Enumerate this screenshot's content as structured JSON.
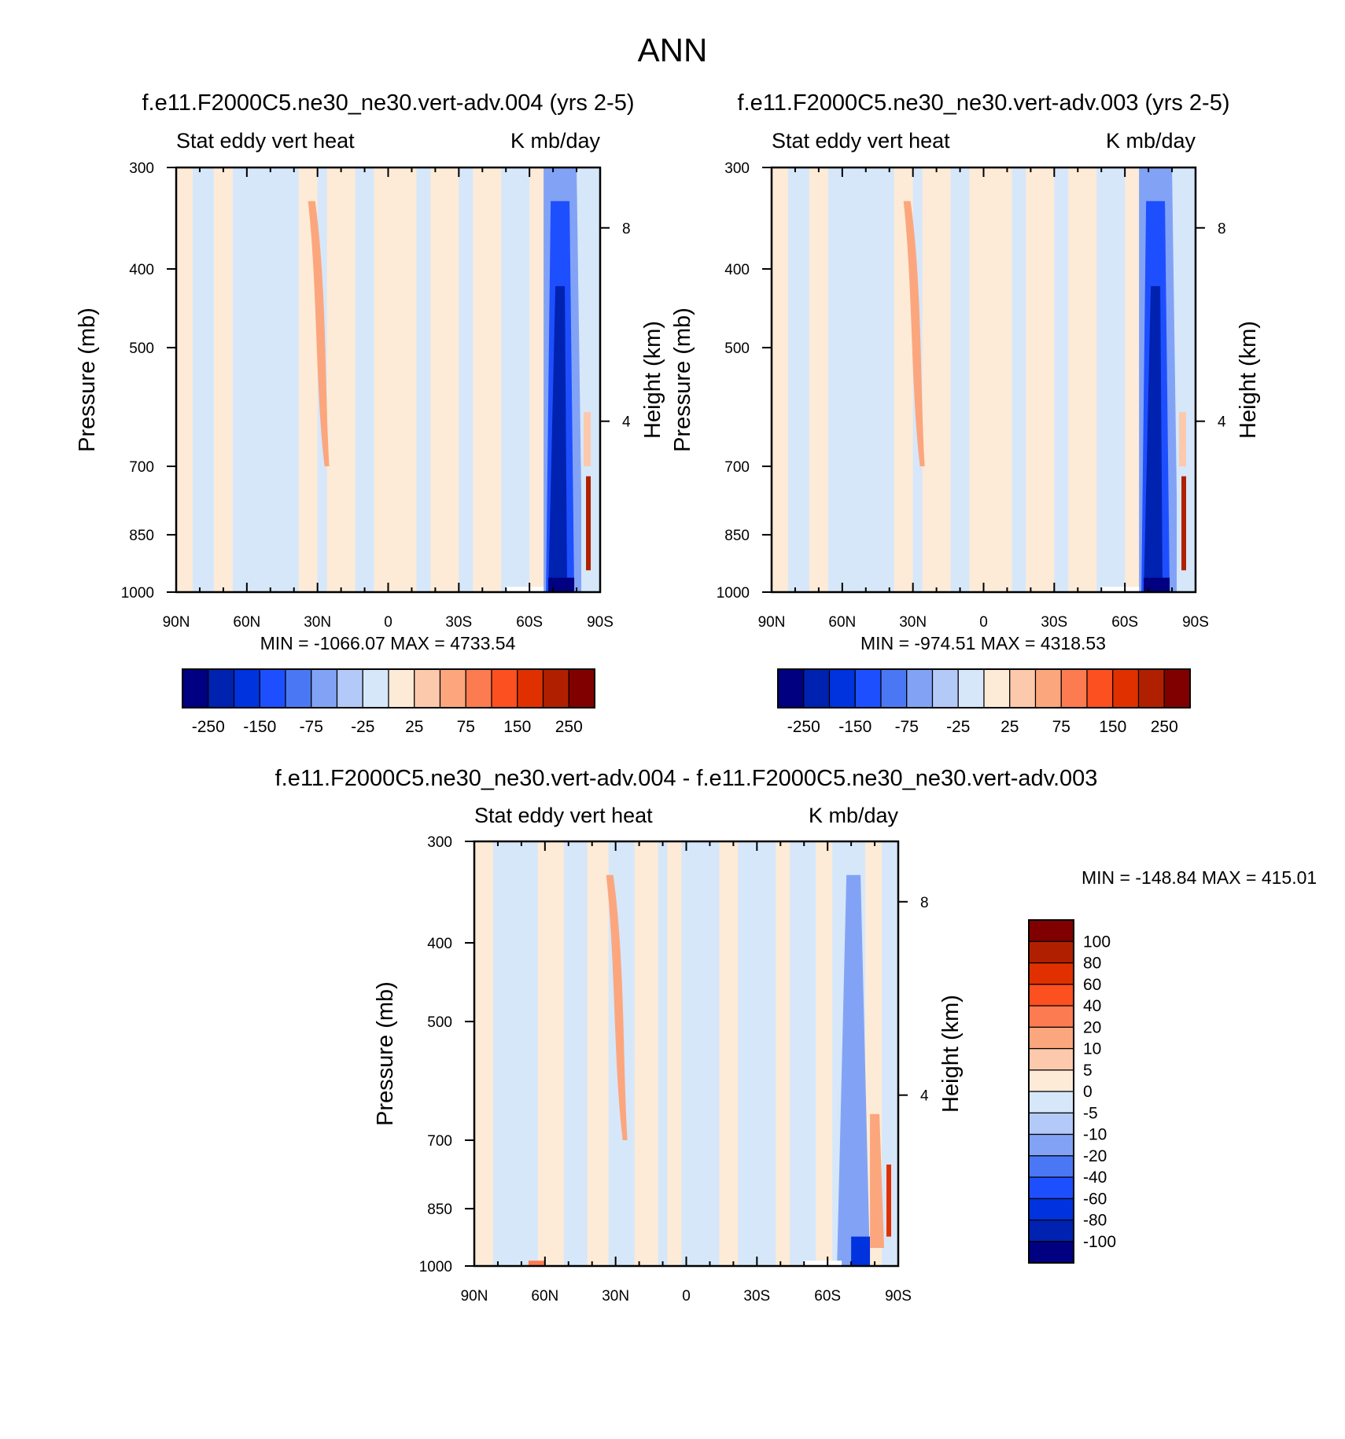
{
  "figure": {
    "title": "ANN"
  },
  "colors": {
    "panel_palette": [
      "#000080",
      "#0022b0",
      "#0033dd",
      "#1e4fff",
      "#4a78f5",
      "#82a3f5",
      "#b3c9f7",
      "#d6e7fa",
      "#fdebd7",
      "#fcc9ad",
      "#fca67e",
      "#fc7b50",
      "#fc5020",
      "#e03000",
      "#b02000",
      "#800000"
    ],
    "diff_palette": [
      "#000080",
      "#0022b0",
      "#0033dd",
      "#1e4fff",
      "#4a78f5",
      "#82a3f5",
      "#b3c9f7",
      "#d6e7fa",
      "#fdebd7",
      "#fcc9ad",
      "#fca67e",
      "#fc7b50",
      "#fc5020",
      "#e03000",
      "#b02000",
      "#800000"
    ]
  },
  "chart_data": [
    {
      "type": "heatmap",
      "title": "f.e11.F2000C5.ne30_ne30.vert-adv.004 (yrs 2-5)",
      "left_subtitle": "Stat eddy vert heat",
      "right_subtitle": "K mb/day",
      "ylabel": "Pressure (mb)",
      "y2label": "Height (km)",
      "x_ticks": [
        "90N",
        "60N",
        "30N",
        "0",
        "30S",
        "60S",
        "90S"
      ],
      "y_ticks": [
        "300",
        "400",
        "500",
        "700",
        "850",
        "1000"
      ],
      "y2_ticks": [
        "8",
        "4"
      ],
      "x_range": [
        90,
        -90
      ],
      "y_range": [
        1000,
        300
      ],
      "y_scale": "log",
      "stats": "MIN = -1066.07  MAX = 4733.54",
      "colorbar": {
        "orientation": "horizontal",
        "labels": [
          "-250",
          "-150",
          "-75",
          "-25",
          "25",
          "75",
          "150",
          "250"
        ]
      }
    },
    {
      "type": "heatmap",
      "title": "f.e11.F2000C5.ne30_ne30.vert-adv.003 (yrs 2-5)",
      "left_subtitle": "Stat eddy vert heat",
      "right_subtitle": "K mb/day",
      "ylabel": "Pressure (mb)",
      "y2label": "Height (km)",
      "x_ticks": [
        "90N",
        "60N",
        "30N",
        "0",
        "30S",
        "60S",
        "90S"
      ],
      "y_ticks": [
        "300",
        "400",
        "500",
        "700",
        "850",
        "1000"
      ],
      "y2_ticks": [
        "8",
        "4"
      ],
      "x_range": [
        90,
        -90
      ],
      "y_range": [
        1000,
        300
      ],
      "y_scale": "log",
      "stats": "MIN = -974.51  MAX = 4318.53",
      "colorbar": {
        "orientation": "horizontal",
        "labels": [
          "-250",
          "-150",
          "-75",
          "-25",
          "25",
          "75",
          "150",
          "250"
        ]
      }
    },
    {
      "type": "heatmap",
      "title": "f.e11.F2000C5.ne30_ne30.vert-adv.004 - f.e11.F2000C5.ne30_ne30.vert-adv.003",
      "left_subtitle": "Stat eddy vert heat",
      "right_subtitle": "K mb/day",
      "ylabel": "Pressure (mb)",
      "y2label": "Height (km)",
      "x_ticks": [
        "90N",
        "60N",
        "30N",
        "0",
        "30S",
        "60S",
        "90S"
      ],
      "y_ticks": [
        "300",
        "400",
        "500",
        "700",
        "850",
        "1000"
      ],
      "y2_ticks": [
        "8",
        "4"
      ],
      "x_range": [
        90,
        -90
      ],
      "y_range": [
        1000,
        300
      ],
      "y_scale": "log",
      "stats": "MIN = -148.84  MAX = 415.01",
      "colorbar": {
        "orientation": "vertical",
        "labels": [
          "100",
          "80",
          "60",
          "40",
          "20",
          "10",
          "5",
          "0",
          "-5",
          "-10",
          "-20",
          "-40",
          "-60",
          "-80",
          "-100"
        ]
      }
    }
  ]
}
